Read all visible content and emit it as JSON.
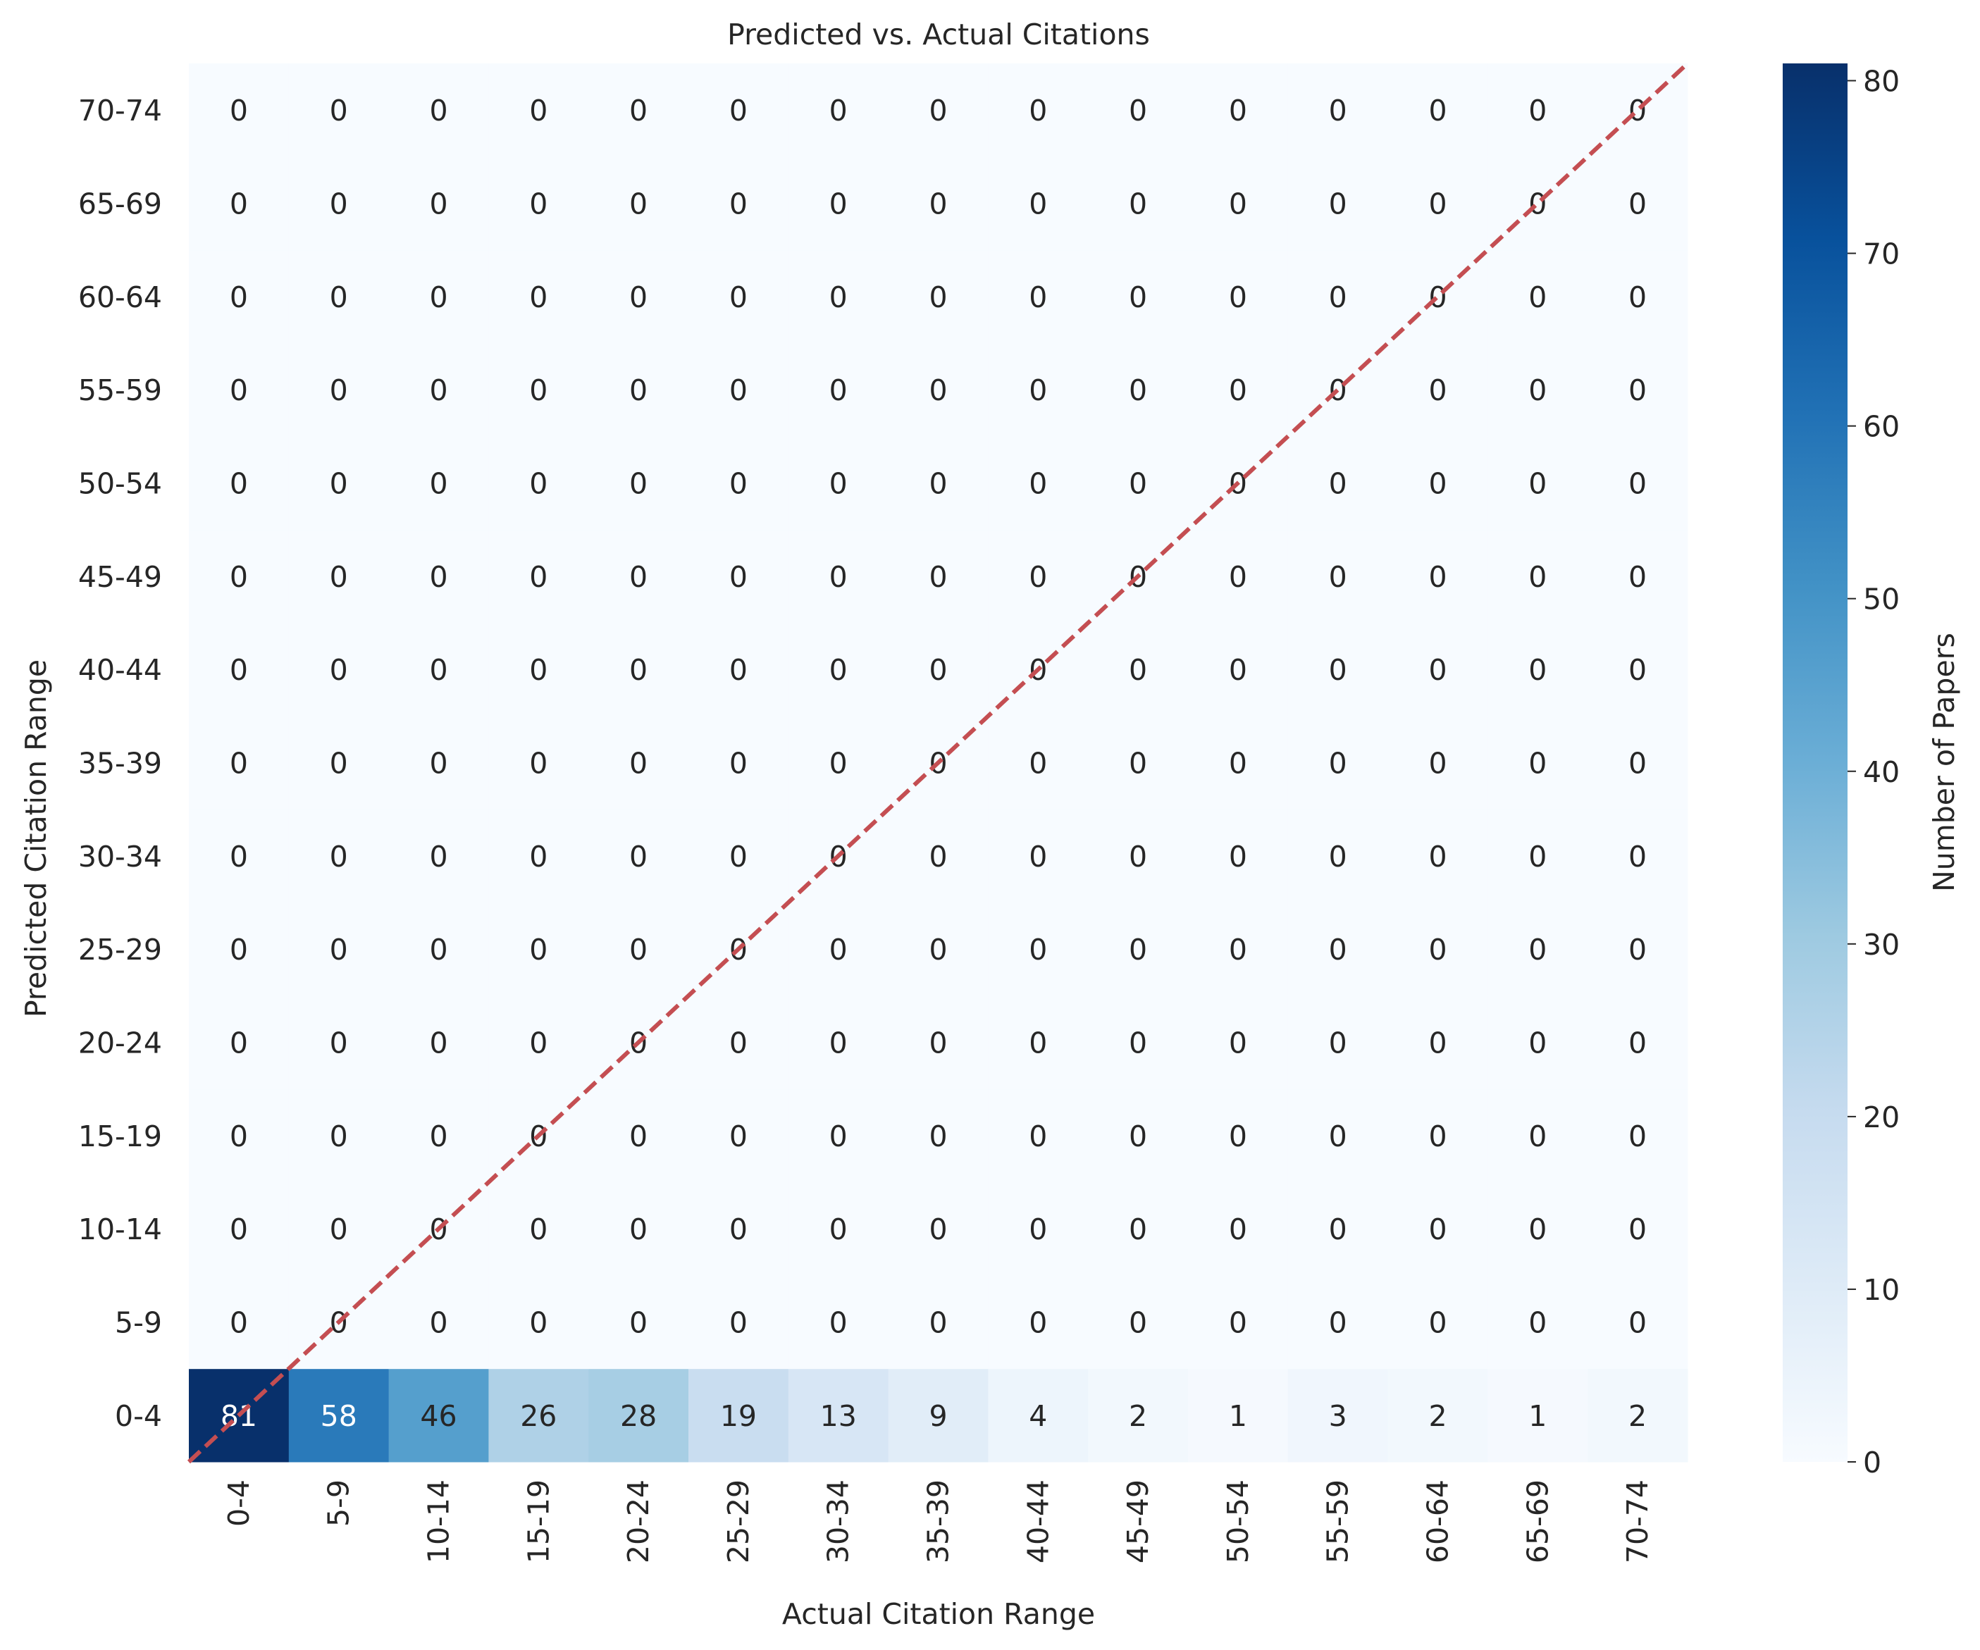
{
  "chart_data": {
    "type": "heatmap",
    "title": "Predicted vs. Actual Citations",
    "xlabel": "Actual Citation Range",
    "ylabel": "Predicted Citation Range",
    "x_categories": [
      "0-4",
      "5-9",
      "10-14",
      "15-19",
      "20-24",
      "25-29",
      "30-34",
      "35-39",
      "40-44",
      "45-49",
      "50-54",
      "55-59",
      "60-64",
      "65-69",
      "70-74"
    ],
    "y_categories": [
      "0-4",
      "5-9",
      "10-14",
      "15-19",
      "20-24",
      "25-29",
      "30-34",
      "35-39",
      "40-44",
      "45-49",
      "50-54",
      "55-59",
      "60-64",
      "65-69",
      "70-74"
    ],
    "values": [
      [
        81,
        58,
        46,
        26,
        28,
        19,
        13,
        9,
        4,
        2,
        1,
        3,
        2,
        1,
        2
      ],
      [
        0,
        0,
        0,
        0,
        0,
        0,
        0,
        0,
        0,
        0,
        0,
        0,
        0,
        0,
        0
      ],
      [
        0,
        0,
        0,
        0,
        0,
        0,
        0,
        0,
        0,
        0,
        0,
        0,
        0,
        0,
        0
      ],
      [
        0,
        0,
        0,
        0,
        0,
        0,
        0,
        0,
        0,
        0,
        0,
        0,
        0,
        0,
        0
      ],
      [
        0,
        0,
        0,
        0,
        0,
        0,
        0,
        0,
        0,
        0,
        0,
        0,
        0,
        0,
        0
      ],
      [
        0,
        0,
        0,
        0,
        0,
        0,
        0,
        0,
        0,
        0,
        0,
        0,
        0,
        0,
        0
      ],
      [
        0,
        0,
        0,
        0,
        0,
        0,
        0,
        0,
        0,
        0,
        0,
        0,
        0,
        0,
        0
      ],
      [
        0,
        0,
        0,
        0,
        0,
        0,
        0,
        0,
        0,
        0,
        0,
        0,
        0,
        0,
        0
      ],
      [
        0,
        0,
        0,
        0,
        0,
        0,
        0,
        0,
        0,
        0,
        0,
        0,
        0,
        0,
        0
      ],
      [
        0,
        0,
        0,
        0,
        0,
        0,
        0,
        0,
        0,
        0,
        0,
        0,
        0,
        0,
        0
      ],
      [
        0,
        0,
        0,
        0,
        0,
        0,
        0,
        0,
        0,
        0,
        0,
        0,
        0,
        0,
        0
      ],
      [
        0,
        0,
        0,
        0,
        0,
        0,
        0,
        0,
        0,
        0,
        0,
        0,
        0,
        0,
        0
      ],
      [
        0,
        0,
        0,
        0,
        0,
        0,
        0,
        0,
        0,
        0,
        0,
        0,
        0,
        0,
        0
      ],
      [
        0,
        0,
        0,
        0,
        0,
        0,
        0,
        0,
        0,
        0,
        0,
        0,
        0,
        0,
        0
      ],
      [
        0,
        0,
        0,
        0,
        0,
        0,
        0,
        0,
        0,
        0,
        0,
        0,
        0,
        0,
        0
      ]
    ],
    "colorbar": {
      "label": "Number of Papers",
      "colormap": "Blues",
      "vmin": 0,
      "vmax": 81,
      "ticks": [
        0,
        10,
        20,
        30,
        40,
        50,
        60,
        70,
        80
      ]
    },
    "diagonal": {
      "style": "dashed",
      "color": "#c44e52"
    },
    "grid": false,
    "legend": "none"
  }
}
